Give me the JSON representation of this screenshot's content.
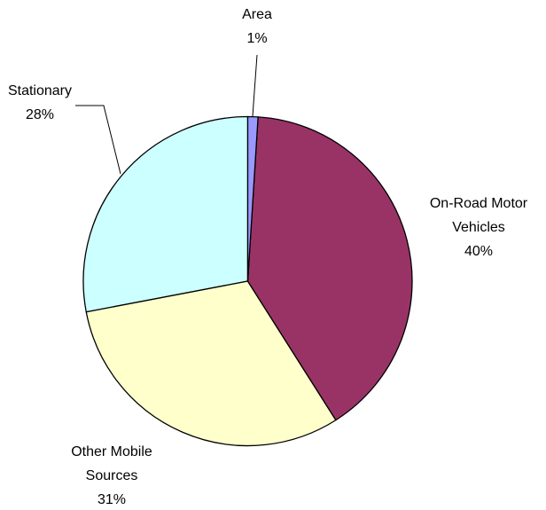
{
  "chart_data": {
    "type": "pie",
    "categories": [
      "Area",
      "On-Road Motor Vehicles",
      "Other Mobile Sources",
      "Stationary"
    ],
    "values": [
      1,
      40,
      31,
      28
    ],
    "value_labels": [
      "1%",
      "40%",
      "31%",
      "28%"
    ],
    "colors": [
      "#9999ff",
      "#993366",
      "#ffffcc",
      "#ccffff"
    ]
  }
}
